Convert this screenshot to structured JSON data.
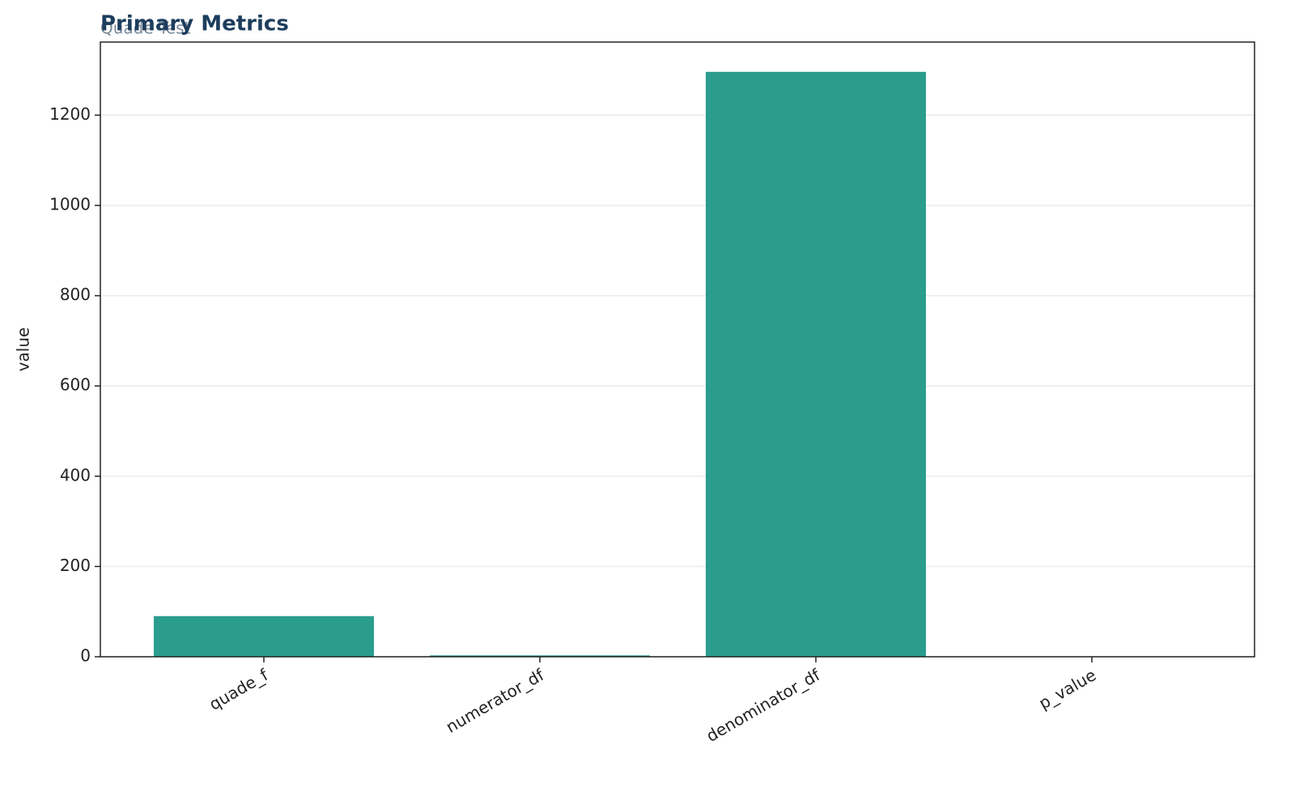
{
  "chart_data": {
    "type": "bar",
    "title": "Primary Metrics",
    "subtitle": "Quade Test",
    "y_label": "value",
    "categories": [
      "quade_f",
      "numerator_df",
      "denominator_df",
      "p_value"
    ],
    "values": [
      90,
      3,
      1296,
      0
    ],
    "color": "#2a9d8f",
    "ylim": [
      0,
      1362
    ],
    "yticks": [
      0,
      200,
      400,
      600,
      800,
      1000,
      1200
    ],
    "grid": true
  }
}
